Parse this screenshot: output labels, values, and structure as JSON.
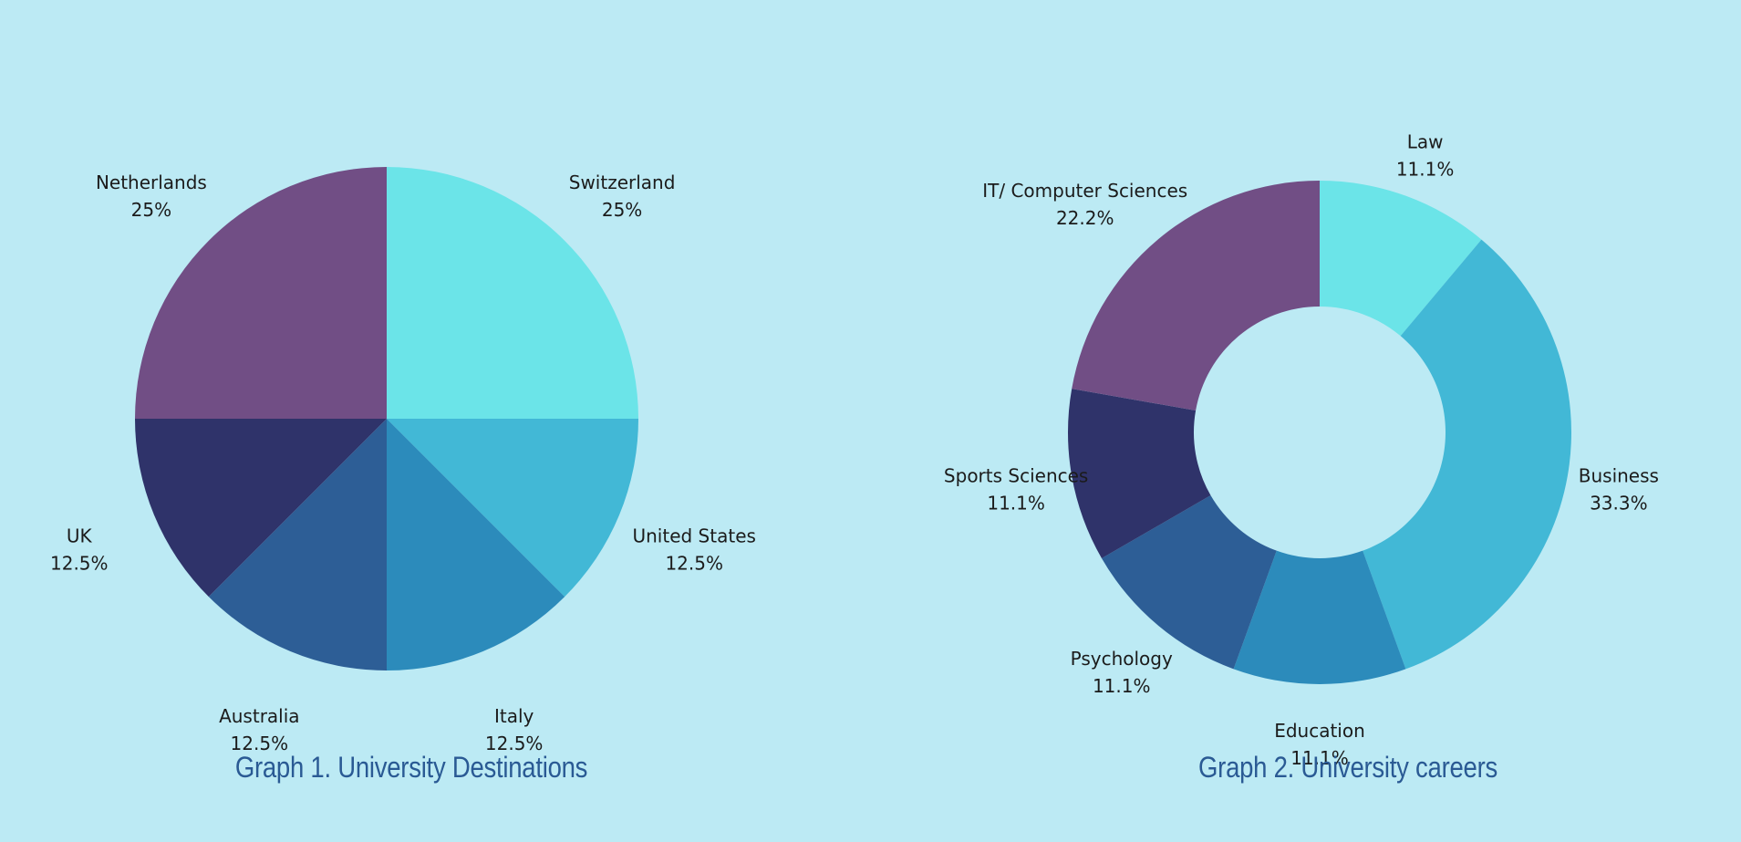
{
  "chart_data": [
    {
      "type": "pie",
      "title": "Graph 1. University Destinations",
      "start_angle_deg": 0,
      "direction": "clockwise",
      "slices": [
        {
          "label": "Switzerland",
          "value": 25,
          "display": "25%",
          "color": "#6be4e8"
        },
        {
          "label": "United States",
          "value": 12.5,
          "display": "12.5%",
          "color": "#42b8d6"
        },
        {
          "label": "Italy",
          "value": 12.5,
          "display": "12.5%",
          "color": "#2c8bbb"
        },
        {
          "label": "Australia",
          "value": 12.5,
          "display": "12.5%",
          "color": "#2d5e96"
        },
        {
          "label": "UK",
          "value": 12.5,
          "display": "12.5%",
          "color": "#2f336a"
        },
        {
          "label": "Netherlands",
          "value": 25,
          "display": "25%",
          "color": "#714e85"
        }
      ]
    },
    {
      "type": "donut",
      "title": "Graph 2. University careers",
      "start_angle_deg": 0,
      "direction": "clockwise",
      "slices": [
        {
          "label": "Law",
          "value": 11.1,
          "display": "11.1%",
          "color": "#6be4e8"
        },
        {
          "label": "Business",
          "value": 33.3,
          "display": "33.3%",
          "color": "#42b8d6"
        },
        {
          "label": "Education",
          "value": 11.1,
          "display": "11.1%",
          "color": "#2c8bbb"
        },
        {
          "label": "Psychology",
          "value": 11.1,
          "display": "11.1%",
          "color": "#2d5e96"
        },
        {
          "label": "Sports Sciences",
          "value": 11.1,
          "display": "11.1%",
          "color": "#2f336a"
        },
        {
          "label": "IT/ Computer Sciences",
          "value": 22.2,
          "display": "22.2%",
          "color": "#714e85"
        }
      ]
    }
  ]
}
